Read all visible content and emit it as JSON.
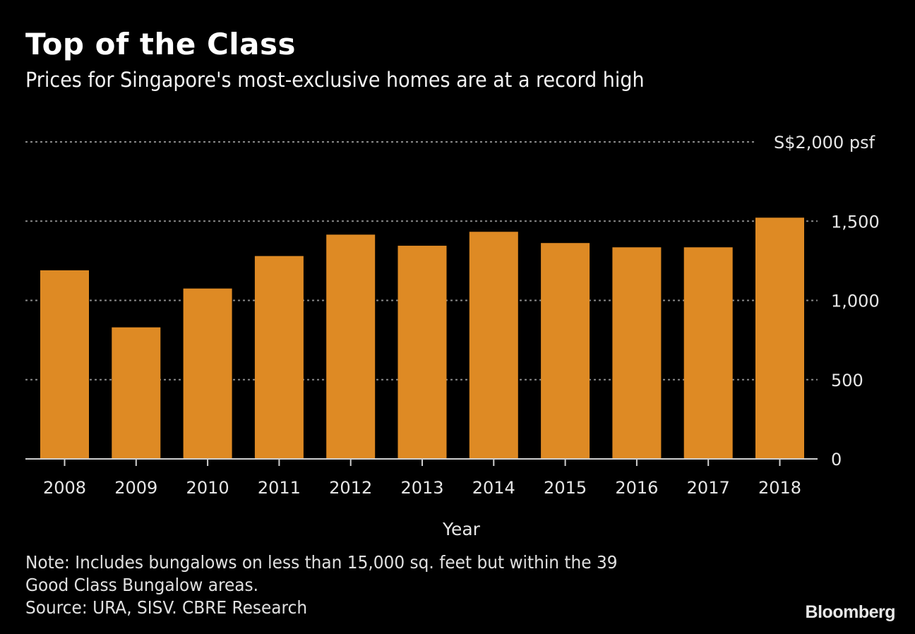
{
  "header": {
    "title": "Top of the Class",
    "subtitle": "Prices for Singapore's most-exclusive homes are at a record high"
  },
  "chart_data": {
    "type": "bar",
    "title": "Top of the Class",
    "subtitle": "Prices for Singapore's most-exclusive homes are at a record high",
    "xlabel": "Year",
    "ylabel": "",
    "y_unit_label": "S$2,000 psf",
    "categories": [
      "2008",
      "2009",
      "2010",
      "2011",
      "2012",
      "2013",
      "2014",
      "2015",
      "2016",
      "2017",
      "2018"
    ],
    "values": [
      1190,
      830,
      1075,
      1280,
      1415,
      1345,
      1433,
      1362,
      1335,
      1335,
      1522
    ],
    "ylim": [
      0,
      2000
    ],
    "y_ticks": [
      0,
      500,
      1000,
      1500,
      2000
    ],
    "y_tick_labels": [
      "0",
      "500",
      "1,000",
      "1,500",
      "S$2,000 psf"
    ],
    "grid": true,
    "y_axis_side": "right",
    "bar_color": "#DE8A24",
    "background": "#000000"
  },
  "footer": {
    "note_line1": "Note: Includes bungalows on less than 15,000 sq. feet but within the 39",
    "note_line2": "Good Class Bungalow areas.",
    "source": "Source: URA, SISV. CBRE Research",
    "brand": "Bloomberg"
  }
}
